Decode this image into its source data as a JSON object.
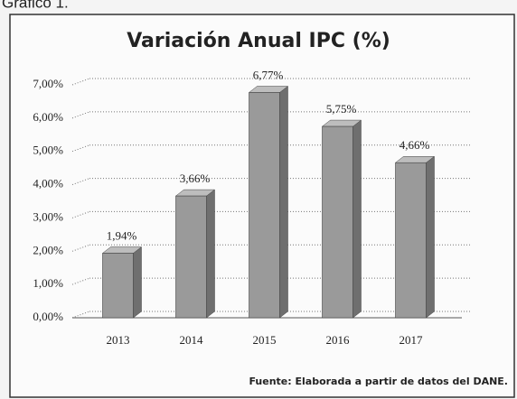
{
  "caption": "Gráfico 1.",
  "chart_data": {
    "type": "bar",
    "title": "Variación Anual IPC (%)",
    "categories": [
      "2013",
      "2014",
      "2015",
      "2016",
      "2017"
    ],
    "values": [
      1.94,
      3.66,
      6.77,
      5.75,
      4.66
    ],
    "value_labels": [
      "1,94%",
      "3,66%",
      "6,77%",
      "5,75%",
      "4,66%"
    ],
    "color": "#9a9a9a",
    "ylim": [
      0,
      7
    ],
    "yticks": [
      {
        "value": 0,
        "label": "0,00%"
      },
      {
        "value": 1,
        "label": "1,00%"
      },
      {
        "value": 2,
        "label": "2,00%"
      },
      {
        "value": 3,
        "label": "3,00%"
      },
      {
        "value": 4,
        "label": "4,00%"
      },
      {
        "value": 5,
        "label": "5,00%"
      },
      {
        "value": 6,
        "label": "6,00%"
      },
      {
        "value": 7,
        "label": "7,00%"
      }
    ],
    "grid": true,
    "source": "Fuente: Elaborada a partir de datos del DANE."
  }
}
